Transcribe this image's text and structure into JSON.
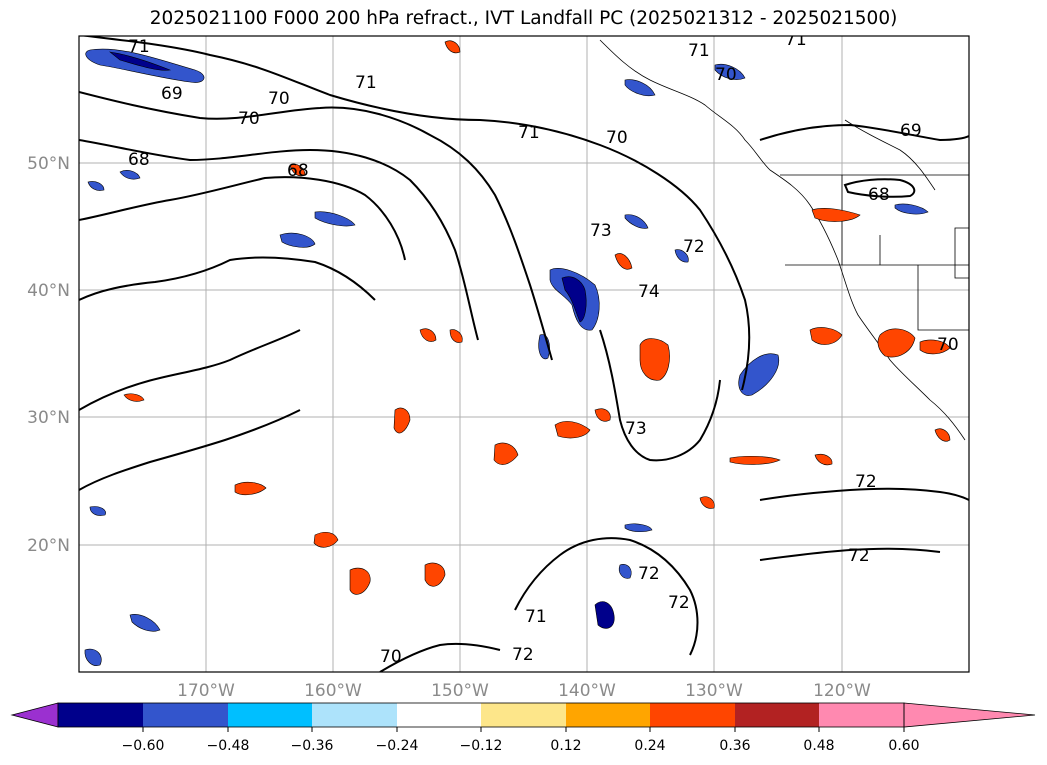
{
  "title": "2025021100 F000 200 hPa refract., IVT Landfall PC (2025021312 - 2025021500)",
  "latitude_labels": [
    "50°N",
    "40°N",
    "30°N",
    "20°N"
  ],
  "longitude_labels": [
    "170°W",
    "160°W",
    "150°W",
    "140°W",
    "130°W",
    "120°W"
  ],
  "contour_labels": [
    "71",
    "71",
    "71",
    "71",
    "70",
    "70",
    "70",
    "69",
    "69",
    "68",
    "68",
    "68",
    "71",
    "70",
    "73",
    "72",
    "74",
    "73",
    "72",
    "72",
    "72",
    "72",
    "70",
    "71",
    "72",
    "70"
  ],
  "colorbar": {
    "ticks": [
      "−0.60",
      "−0.48",
      "−0.36",
      "−0.24",
      "−0.12",
      "0.12",
      "0.24",
      "0.36",
      "0.48",
      "0.60"
    ],
    "colors": [
      "#9b30d0",
      "#00008b",
      "#3355cc",
      "#00bfff",
      "#ade3fb",
      "#ffffff",
      "#fde68a",
      "#ffa500",
      "#ff4500",
      "#b22222",
      "#ff89b0"
    ]
  },
  "chart_data": {
    "type": "map",
    "title": "2025021100 F000 200 hPa refract., IVT Landfall PC (2025021312 - 2025021500)",
    "projection": "lat-lon",
    "lon_range_deg": [
      -180,
      -110
    ],
    "lat_range_deg": [
      10,
      60
    ],
    "gridlines": true,
    "filled_field_levels": [
      -0.6,
      -0.48,
      -0.36,
      -0.24,
      -0.12,
      0.12,
      0.24,
      0.36,
      0.48,
      0.6
    ],
    "contour_levels_shown": [
      68,
      69,
      70,
      71,
      72,
      73,
      74
    ]
  }
}
